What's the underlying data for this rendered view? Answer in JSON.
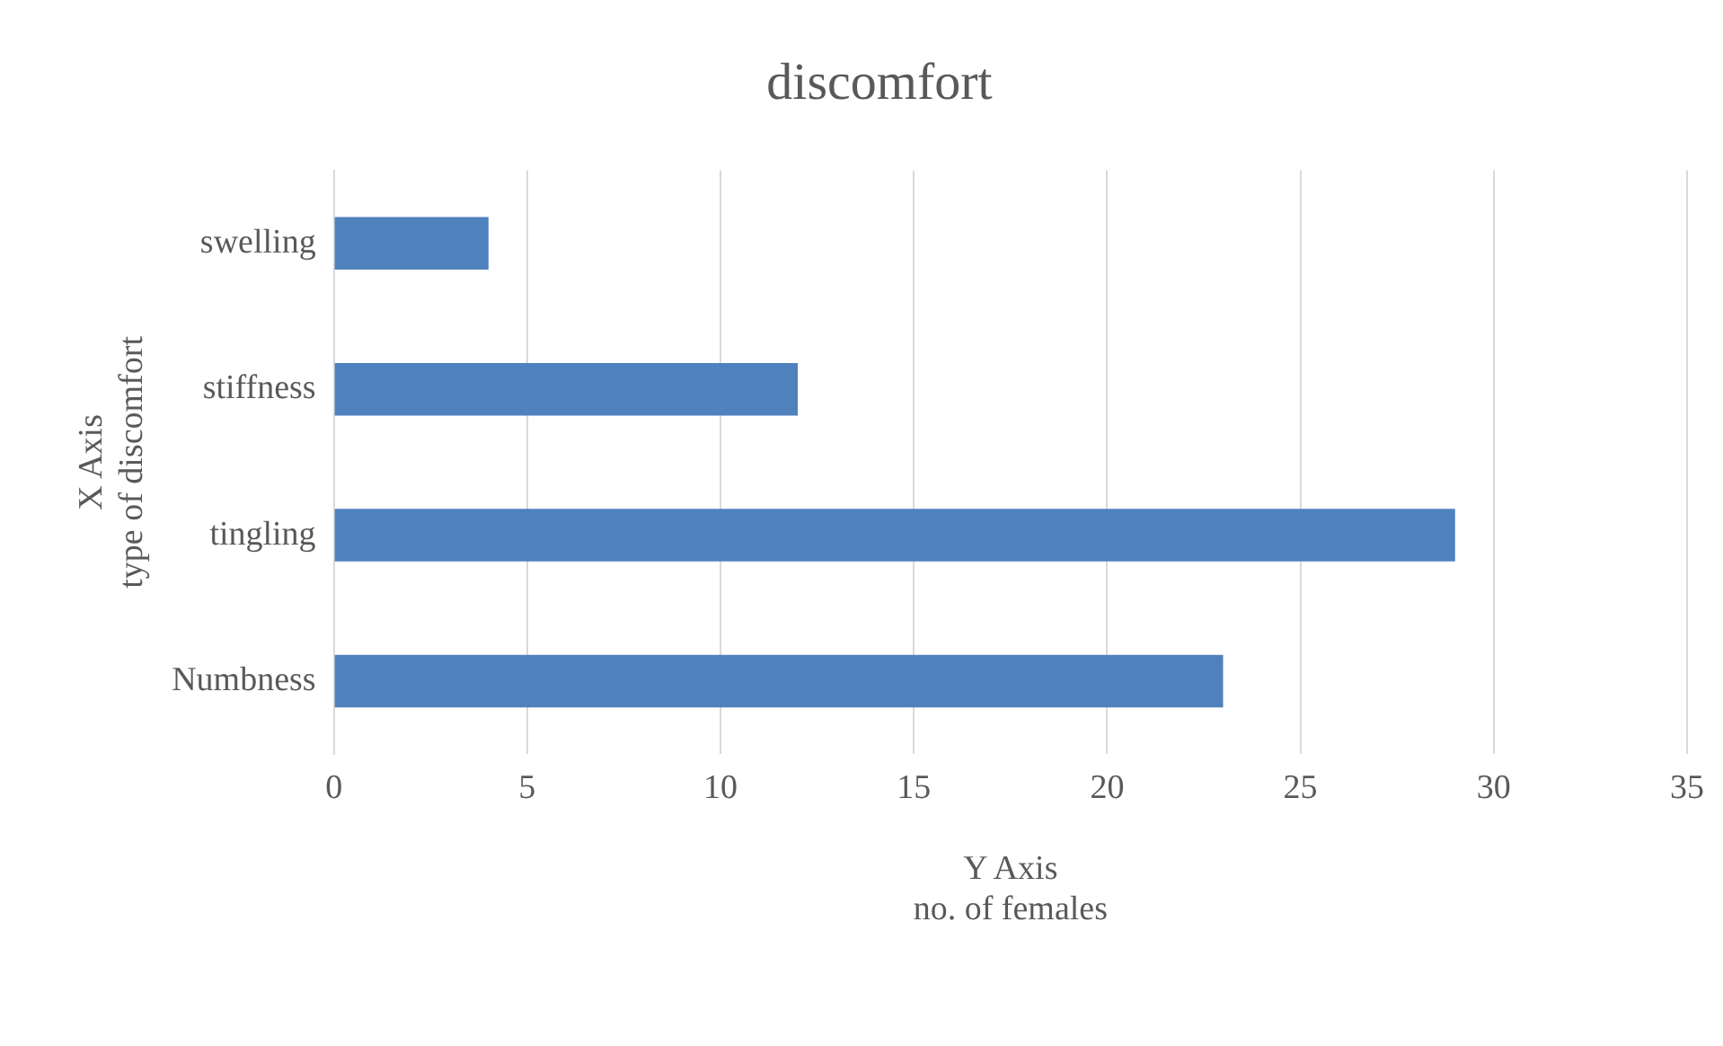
{
  "chart_data": {
    "type": "bar",
    "orientation": "horizontal",
    "title": "discomfort",
    "xlabel": "Y Axis\nno. of females",
    "ylabel": "X Axis\ntype of discomfort",
    "categories": [
      "swelling",
      "stiffness",
      "tingling",
      "Numbness"
    ],
    "values": [
      4,
      12,
      29,
      23
    ],
    "color": "#4f81bd",
    "xlim": [
      0,
      35
    ],
    "xticks": [
      0,
      5,
      10,
      15,
      20,
      25,
      30,
      35
    ],
    "grid": "x",
    "legend": false
  }
}
